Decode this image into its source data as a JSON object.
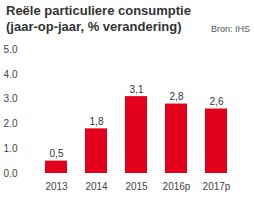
{
  "chart_data": {
    "type": "bar",
    "title": "Reële particuliere consumptie",
    "subtitle": "(jaar-op-jaar, % verandering)",
    "source": "Bron: IHS",
    "categories": [
      "2013",
      "2014",
      "2015",
      "2016p",
      "2017p"
    ],
    "values": [
      0.5,
      1.8,
      3.1,
      2.8,
      2.6
    ],
    "value_labels": [
      "0,5",
      "1,8",
      "3,1",
      "2,8",
      "2,6"
    ],
    "color": "#e2001a",
    "ylim": [
      0,
      5
    ],
    "yticks": [
      0,
      1,
      2,
      3,
      4,
      5
    ],
    "grid": false,
    "data_labels": true
  }
}
